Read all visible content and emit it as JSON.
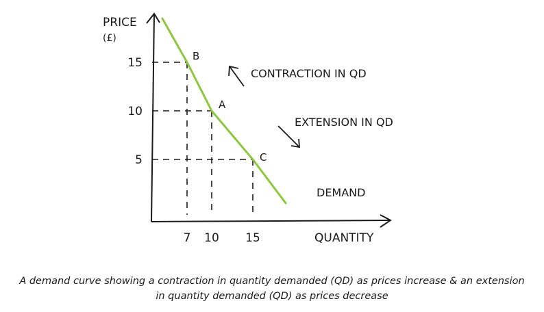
{
  "chart_data": {
    "type": "line",
    "ylabel": "PRICE",
    "yunit": "(£)",
    "xlabel": "QUANTITY",
    "xlim": [
      0,
      20
    ],
    "ylim": [
      0,
      20
    ],
    "xticks": [
      7,
      10,
      15
    ],
    "yticks": [
      15,
      10,
      5
    ],
    "series": [
      {
        "name": "DEMAND",
        "color": "#8dc63f",
        "x": [
          4,
          7,
          10,
          15,
          19
        ],
        "y": [
          19.5,
          15,
          10,
          5,
          0.5
        ]
      }
    ],
    "points": [
      {
        "label": "B",
        "x": 7,
        "y": 15
      },
      {
        "label": "A",
        "x": 10,
        "y": 10
      },
      {
        "label": "C",
        "x": 15,
        "y": 5
      }
    ],
    "annotations": [
      {
        "text": "CONTRACTION IN QD",
        "direction": "up"
      },
      {
        "text": "EXTENSION IN QD",
        "direction": "down"
      }
    ],
    "grid": false,
    "dashed_guides": true
  },
  "caption": {
    "line1": "A demand curve showing a contraction in quantity demanded (QD) as prices increase & an extension",
    "line2": "in quantity demanded (QD) as prices decrease"
  }
}
